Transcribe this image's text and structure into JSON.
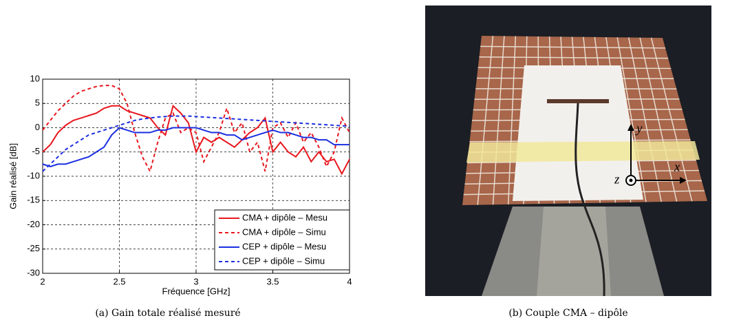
{
  "chart_data": {
    "type": "line",
    "xlabel": "Fréquence [GHz]",
    "ylabel": "Gain réalisé [dB]",
    "x": [
      2.0,
      2.05,
      2.1,
      2.15,
      2.2,
      2.25,
      2.3,
      2.35,
      2.4,
      2.45,
      2.5,
      2.55,
      2.6,
      2.65,
      2.7,
      2.75,
      2.8,
      2.85,
      2.9,
      2.95,
      3.0,
      3.05,
      3.1,
      3.15,
      3.2,
      3.25,
      3.3,
      3.35,
      3.4,
      3.45,
      3.5,
      3.55,
      3.6,
      3.65,
      3.7,
      3.75,
      3.8,
      3.85,
      3.9,
      3.95,
      4.0
    ],
    "series": [
      {
        "name": "CMA + dipôle – Mesu",
        "color": "#e8161d",
        "dash": false,
        "values": [
          -5,
          -3.5,
          -1,
          0.5,
          1.5,
          2,
          2.5,
          3,
          4,
          4.5,
          4.5,
          3.5,
          3,
          2.5,
          2,
          0,
          -1.5,
          4.5,
          3,
          1,
          -5,
          -2,
          -3,
          -2,
          -3,
          -4,
          -2.5,
          -1,
          0,
          2,
          -5,
          -3,
          -5,
          -6,
          -4,
          -7,
          -5,
          -7,
          -6.5,
          -9.5,
          -6.5
        ]
      },
      {
        "name": "CMA + dipôle – Simu",
        "color": "#e8161d",
        "dash": true,
        "values": [
          -0.5,
          1.5,
          3.5,
          5,
          6.5,
          7.5,
          8,
          8.5,
          8.7,
          8.7,
          8,
          5,
          -1,
          -6,
          -9,
          -3,
          2,
          3,
          -1,
          0,
          -1,
          -7,
          -4,
          -1,
          4,
          -1,
          1,
          -5,
          -3,
          -9,
          0,
          1,
          -2,
          1,
          -3,
          -1,
          -4,
          -8,
          -5,
          2,
          -1
        ]
      },
      {
        "name": "CEP + dipôle – Mesu",
        "color": "#1a2ee0",
        "dash": false,
        "values": [
          -7.5,
          -8,
          -7.5,
          -7.5,
          -7,
          -6.5,
          -6,
          -5,
          -4,
          -1.5,
          0,
          -0.5,
          -1,
          -1,
          -1,
          -0.5,
          -0.5,
          0,
          0,
          0,
          0,
          -0.5,
          -1,
          -1,
          -1.5,
          -1.5,
          -2.5,
          -2,
          -1.5,
          -1,
          -0.5,
          -1,
          -1,
          -1.5,
          -2,
          -2,
          -2.5,
          -2.5,
          -3.5,
          -3.5,
          -3.5
        ]
      },
      {
        "name": "CEP + dipôle – Simu",
        "color": "#1a2ee0",
        "dash": true,
        "values": [
          -9,
          -7.5,
          -6,
          -4.5,
          -3.5,
          -2.5,
          -1.5,
          -1,
          -0.5,
          0,
          0.5,
          1,
          1.5,
          1.8,
          2,
          2.2,
          2.3,
          2.4,
          2.4,
          2.4,
          2.3,
          2.2,
          2.1,
          2,
          1.9,
          1.8,
          1.7,
          1.6,
          1.5,
          1.4,
          1.3,
          1.2,
          1.1,
          1,
          0.9,
          0.8,
          0.7,
          0.6,
          0.5,
          0.4,
          0.3
        ]
      }
    ],
    "xlim": [
      2,
      4
    ],
    "xticks": [
      2,
      2.5,
      3,
      3.5,
      4
    ],
    "ylim": [
      -30,
      10
    ],
    "yticks": [
      -30,
      -25,
      -20,
      -15,
      -10,
      -5,
      0,
      5,
      10
    ],
    "grid": true,
    "legend": "lower right"
  },
  "captions": [
    "(a) Gain totale réalisé mesuré",
    "(b) Couple CMA – dipôle"
  ],
  "photo": {
    "axis_labels": {
      "x": "x",
      "y": "y",
      "z": "z"
    }
  }
}
